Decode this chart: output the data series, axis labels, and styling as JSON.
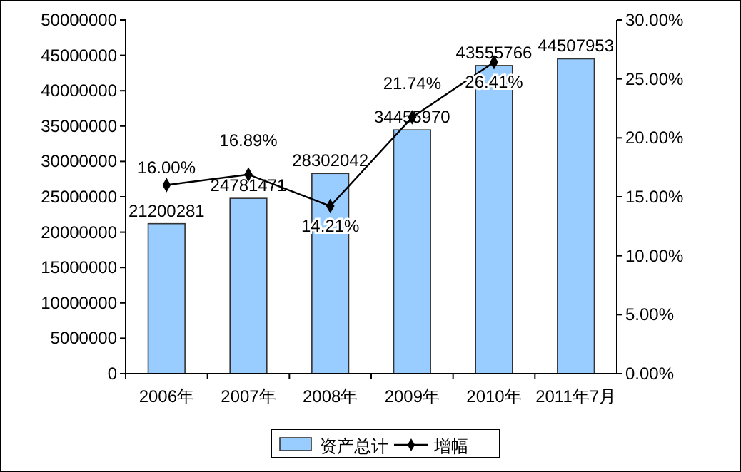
{
  "chart_data": {
    "type": "bar",
    "categories": [
      "2006年",
      "2007年",
      "2008年",
      "2009年",
      "2010年",
      "2011年7月"
    ],
    "series": [
      {
        "name": "资产总计",
        "color": "#99ccff",
        "values": [
          21200281,
          24781471,
          28302042,
          34455970,
          43555766,
          44507953
        ]
      },
      {
        "name": "增幅",
        "type": "line",
        "axis": "y2",
        "color": "#000000",
        "values": [
          16.0,
          16.89,
          14.21,
          21.74,
          26.41,
          null
        ],
        "value_labels": [
          "16.00%",
          "16.89%",
          "14.21%",
          "21.74%",
          "26.41%",
          null
        ]
      }
    ],
    "ylim": [
      0,
      50000000
    ],
    "yticks": [
      0,
      5000000,
      10000000,
      15000000,
      20000000,
      25000000,
      30000000,
      35000000,
      40000000,
      45000000,
      50000000
    ],
    "y2lim": [
      0,
      30
    ],
    "y2ticks": [
      {
        "value": 0,
        "label": "0.00%"
      },
      {
        "value": 5,
        "label": "5.00%"
      },
      {
        "value": 10,
        "label": "10.00%"
      },
      {
        "value": 15,
        "label": "15.00%"
      },
      {
        "value": 20,
        "label": "20.00%"
      },
      {
        "value": 25,
        "label": "25.00%"
      },
      {
        "value": 30,
        "label": "30.00%"
      }
    ],
    "data_labels": true,
    "legend": "bottom",
    "marker": "diamond",
    "grid": false
  }
}
